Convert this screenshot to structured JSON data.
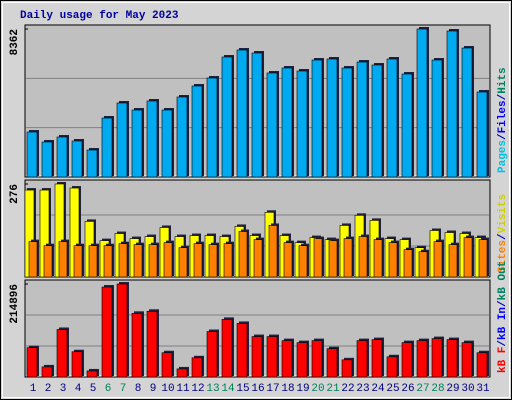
{
  "chart_data": [
    {
      "type": "bar",
      "title": "Daily usage for May 2023",
      "categories": [
        "1",
        "2",
        "3",
        "4",
        "5",
        "6",
        "7",
        "8",
        "9",
        "10",
        "11",
        "12",
        "13",
        "14",
        "15",
        "16",
        "17",
        "18",
        "19",
        "20",
        "21",
        "22",
        "23",
        "24",
        "25",
        "26",
        "27",
        "28",
        "29",
        "30",
        "31"
      ],
      "category_colors": [
        "#000080",
        "#000080",
        "#000080",
        "#000080",
        "#000080",
        "#00805c",
        "#00805c",
        "#000080",
        "#000080",
        "#000080",
        "#000080",
        "#000080",
        "#00805c",
        "#00805c",
        "#000080",
        "#000080",
        "#000080",
        "#000080",
        "#000080",
        "#00805c",
        "#00805c",
        "#000080",
        "#000080",
        "#000080",
        "#000080",
        "#000080",
        "#00805c",
        "#00805c",
        "#000080",
        "#000080",
        "#000080"
      ],
      "series": [
        {
          "color": "#00aaf0",
          "values": [
            2542,
            1978,
            2260,
            2034,
            1525,
            3333,
            4181,
            3785,
            4294,
            3785,
            4520,
            5141,
            5593,
            6780,
            7175,
            7006,
            5876,
            6158,
            5989,
            6610,
            6667,
            6158,
            6497,
            6328,
            6667,
            5819,
            8362,
            6610,
            8249,
            7288,
            4802
          ]
        }
      ],
      "legend": [
        {
          "label": "Pages",
          "color": "#00c0e0"
        },
        {
          "label": "/",
          "color": "#0000c0"
        },
        {
          "label": "Files",
          "color": "#0000ff"
        },
        {
          "label": "/",
          "color": "#0000c0"
        },
        {
          "label": "Hits",
          "color": "#008060"
        }
      ],
      "ylim": [
        0,
        8362
      ],
      "yticks": [
        8362
      ]
    },
    {
      "type": "bar",
      "series": [
        {
          "color": "#ffff00",
          "values": [
            258,
            258,
            276,
            264,
            165,
            108,
            129,
            114,
            120,
            147,
            120,
            123,
            123,
            120,
            150,
            123,
            192,
            123,
            102,
            117,
            111,
            153,
            183,
            168,
            114,
            111,
            87,
            138,
            132,
            129,
            117
          ]
        },
        {
          "color": "#ff8000",
          "values": [
            105,
            93,
            105,
            93,
            93,
            93,
            99,
            96,
            96,
            102,
            87,
            99,
            96,
            99,
            135,
            111,
            153,
            102,
            93,
            114,
            108,
            114,
            120,
            111,
            102,
            81,
            75,
            105,
            96,
            117,
            111
          ]
        }
      ],
      "legend": [
        {
          "label": "Sites",
          "color": "#ff8000"
        },
        {
          "label": "/",
          "color": "#0000c0"
        },
        {
          "label": "Visits",
          "color": "#d0d000"
        }
      ],
      "ylim": [
        0,
        276
      ],
      "yticks": [
        276
      ]
    },
    {
      "type": "bar",
      "series": [
        {
          "color": "#ff0000",
          "values": [
            67740,
            23360,
            109790,
            58400,
            14020,
            207890,
            214896,
            147160,
            151830,
            56060,
            18690,
            44380,
            105110,
            133140,
            123800,
            93430,
            93430,
            84090,
            79420,
            84090,
            65400,
            39710,
            84090,
            86430,
            46720,
            79420,
            84090,
            88760,
            86430,
            79420,
            56060
          ]
        }
      ],
      "legend": [
        {
          "label": "kB F",
          "color": "#ff0000"
        },
        {
          "label": "/",
          "color": "#0000c0"
        },
        {
          "label": "kB In",
          "color": "#0000ff"
        },
        {
          "label": "/",
          "color": "#0000c0"
        },
        {
          "label": "kB Out",
          "color": "#008060"
        }
      ],
      "ylim": [
        0,
        214896
      ],
      "yticks": [
        214896
      ]
    }
  ]
}
